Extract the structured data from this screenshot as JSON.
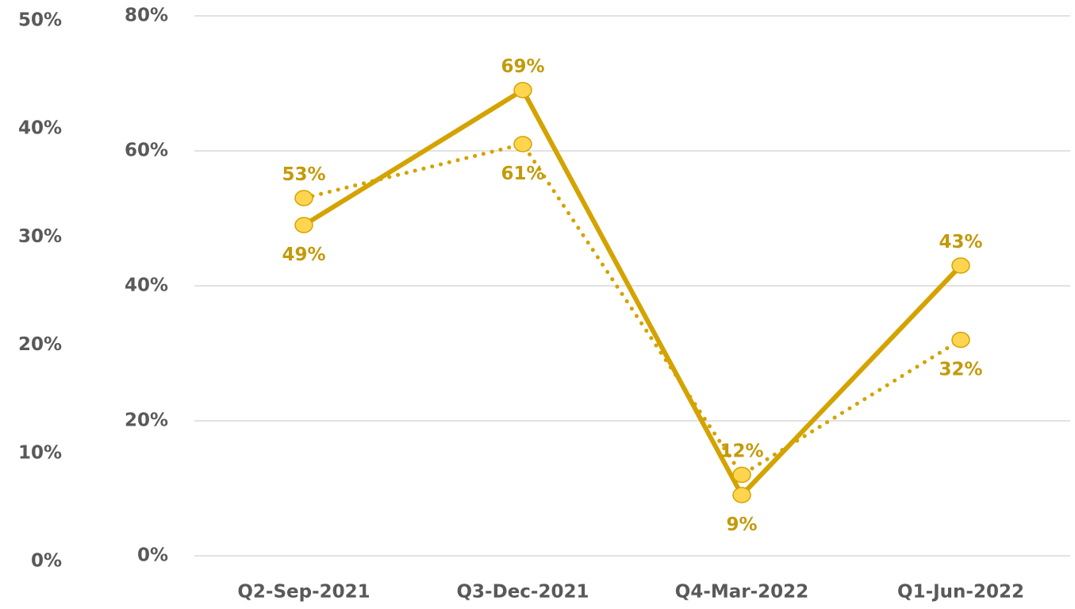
{
  "chart_data": {
    "type": "line",
    "categories": [
      "Q2-Sep-2021",
      "Q3-Dec-2021",
      "Q4-Mar-2022",
      "Q1-Jun-2022"
    ],
    "series": [
      {
        "color": "#d4a300",
        "marker_color": "#ffd54f",
        "style": "solid",
        "values": [
          49,
          69,
          9,
          43
        ],
        "value_labels": [
          "49%",
          "69%",
          "9%",
          "43%"
        ]
      },
      {
        "color": "#d4a300",
        "marker_color": "#ffd54f",
        "style": "dotted",
        "values": [
          53,
          61,
          12,
          32
        ],
        "value_labels": [
          "53%",
          "61%",
          "12%",
          "32%"
        ]
      }
    ],
    "ylim": [
      0,
      80
    ],
    "yticks": [
      {
        "value": 0,
        "label": "0%"
      },
      {
        "value": 20,
        "label": "20%"
      },
      {
        "value": 40,
        "label": "40%"
      },
      {
        "value": 60,
        "label": "60%"
      },
      {
        "value": 80,
        "label": "80%"
      }
    ],
    "y2lim": [
      0,
      50
    ],
    "y2ticks": [
      {
        "value": 0,
        "label": "0%"
      },
      {
        "value": 10,
        "label": "10%"
      },
      {
        "value": 20,
        "label": "20%"
      },
      {
        "value": 30,
        "label": "30%"
      },
      {
        "value": 40,
        "label": "40%"
      },
      {
        "value": 50,
        "label": "50%"
      }
    ],
    "grid": true
  }
}
